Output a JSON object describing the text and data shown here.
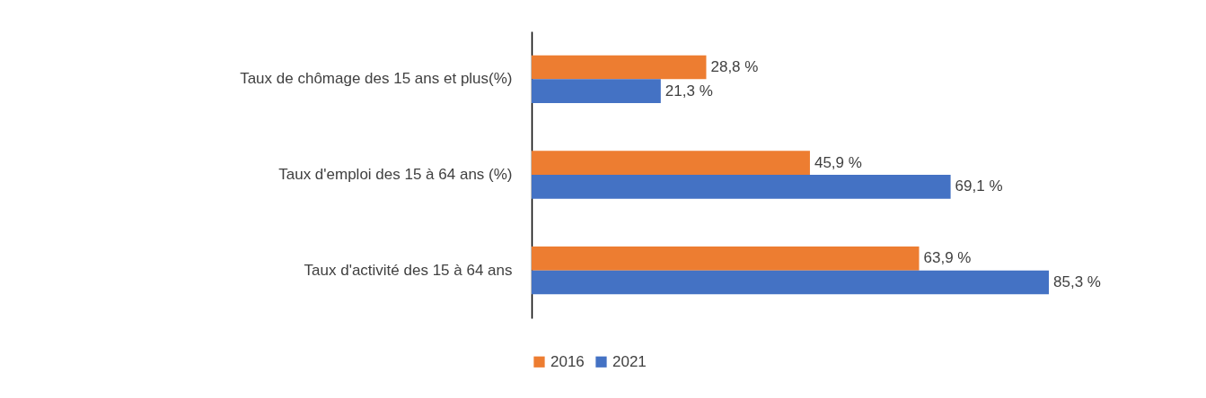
{
  "chart_data": {
    "type": "bar",
    "orientation": "horizontal",
    "categories": [
      "Taux de chômage des 15 ans et plus(%)",
      "Taux d'emploi des 15 à 64 ans (%)",
      "Taux d'activité des 15 à 64 ans"
    ],
    "series": [
      {
        "name": "2016",
        "color": "#ed7d31",
        "values": [
          28.8,
          45.9,
          63.9
        ],
        "value_labels": [
          "28,8 %",
          "45,9 %",
          "63,9 %"
        ]
      },
      {
        "name": "2021",
        "color": "#4472c4",
        "values": [
          21.3,
          69.1,
          85.3
        ],
        "value_labels": [
          "21,3 %",
          "69,1 %",
          "85,3 %"
        ]
      }
    ],
    "tick_labels": "y",
    "legend": "bottom"
  }
}
